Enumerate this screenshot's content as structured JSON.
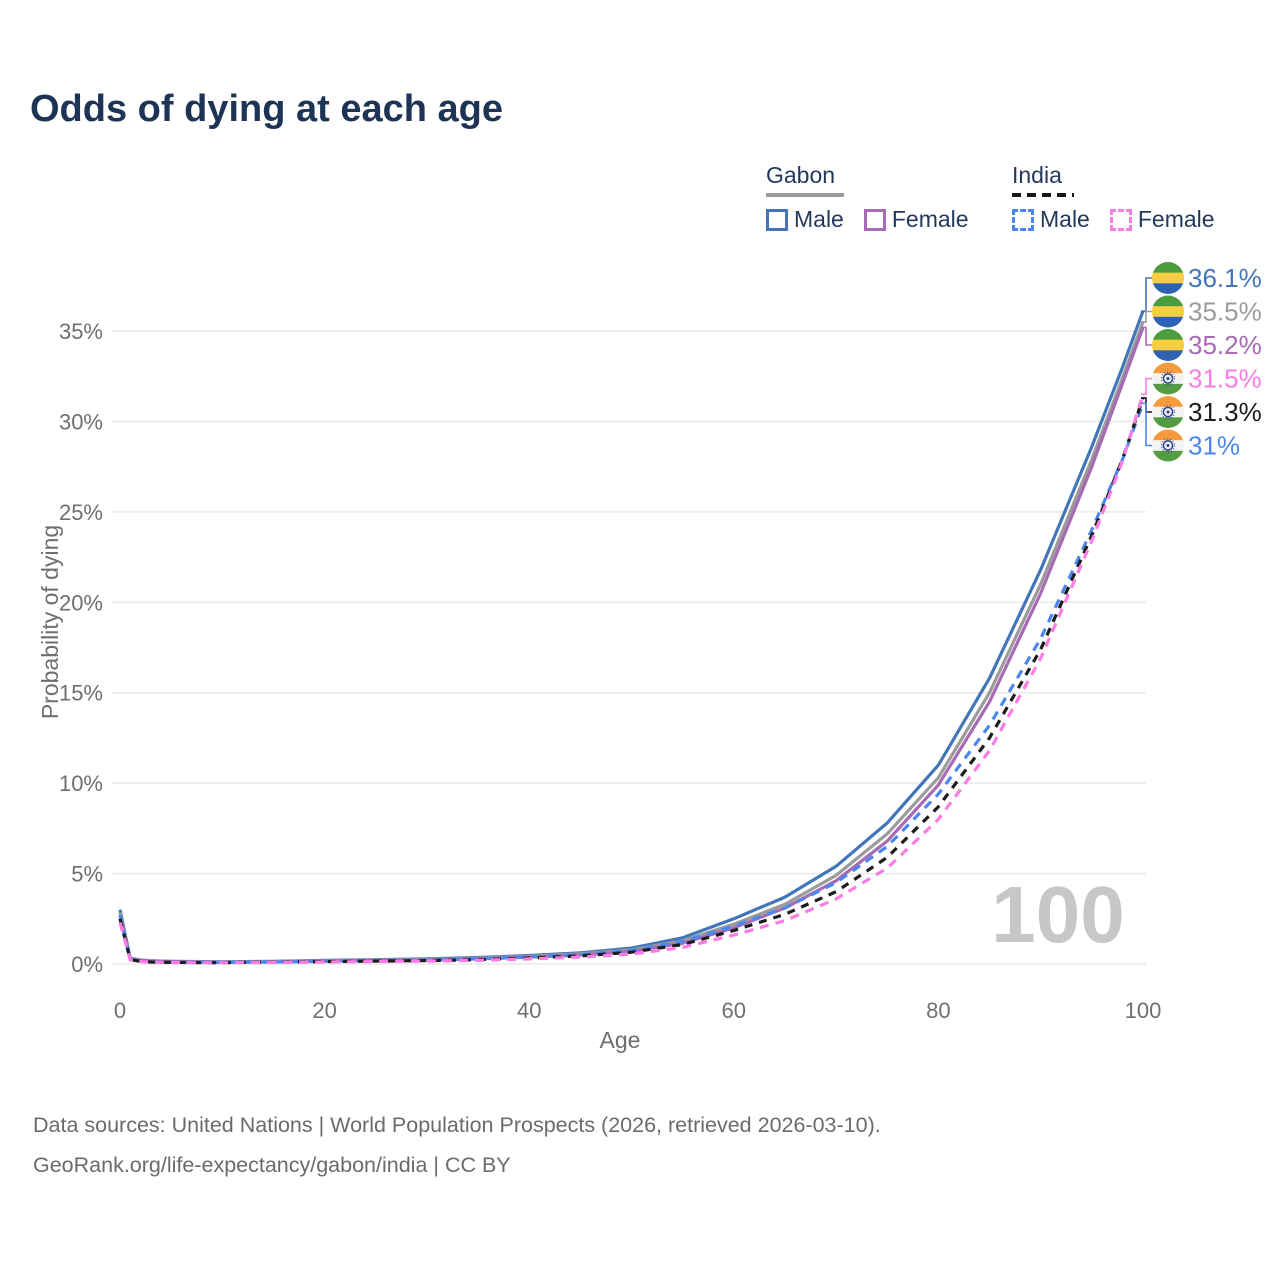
{
  "title": "Odds of dying at each age",
  "watermark": "100",
  "legend": {
    "gabon": {
      "title": "Gabon",
      "male": "Male",
      "female": "Female"
    },
    "india": {
      "title": "India",
      "male": "Male",
      "female": "Female"
    }
  },
  "footer": {
    "line1": "Data sources: United Nations | World Population Prospects (2026, retrieved 2026-03-10).",
    "line2": "GeoRank.org/life-expectancy/gabon/india | CC BY"
  },
  "colors": {
    "title_text": "#1d3456",
    "legend_text": "#22395c",
    "axis_text": "#6f6f6f",
    "grid_line": "#e9e9e9",
    "watermark": "#c7c7c7",
    "gabon_underline": "#9b9b9b",
    "india_underline": "#161616",
    "flag_gabon": [
      "#4c9c3f",
      "#f6ce41",
      "#2d62b2"
    ],
    "flag_india": [
      "#f59b3c",
      "#f3f3f3",
      "#549c44"
    ],
    "india_chakra": "#27408f"
  },
  "chart_data": {
    "type": "line",
    "title": "Odds of dying at each age",
    "xlabel": "Age",
    "ylabel": "Probability of dying",
    "xlim": [
      0,
      100
    ],
    "ylim": [
      0,
      37.5
    ],
    "grid": "horizontal",
    "legend_position": "top-right",
    "x_ticks": [
      0,
      20,
      40,
      60,
      80,
      100
    ],
    "y_ticks": [
      "0%",
      "5%",
      "10%",
      "15%",
      "20%",
      "25%",
      "30%",
      "35%"
    ],
    "y_tick_values": [
      0,
      5,
      10,
      15,
      20,
      25,
      30,
      35
    ],
    "ages": [
      0,
      1,
      2,
      3,
      5,
      8,
      10,
      15,
      20,
      25,
      30,
      35,
      40,
      45,
      50,
      55,
      60,
      65,
      70,
      75,
      80,
      85,
      90,
      95,
      98,
      100
    ],
    "series": [
      {
        "name": "Gabon Male",
        "country": "Gabon",
        "sex": "Male",
        "flag": "gabon",
        "color": "#4276b9",
        "dash": "",
        "end_label": "36.1%",
        "end_value": 36.1,
        "values": [
          3.0,
          0.32,
          0.22,
          0.18,
          0.15,
          0.13,
          0.12,
          0.15,
          0.2,
          0.24,
          0.29,
          0.36,
          0.47,
          0.62,
          0.88,
          1.45,
          2.5,
          3.7,
          5.4,
          7.8,
          11.0,
          15.8,
          21.8,
          28.6,
          33.0,
          36.1
        ]
      },
      {
        "name": "Gabon Both sexes",
        "country": "Gabon",
        "sex": "Both",
        "flag": "gabon",
        "color": "#9b9b9b",
        "dash": "",
        "end_label": "35.5%",
        "end_value": 35.5,
        "values": [
          2.85,
          0.3,
          0.21,
          0.17,
          0.14,
          0.12,
          0.11,
          0.13,
          0.18,
          0.21,
          0.26,
          0.32,
          0.42,
          0.56,
          0.78,
          1.28,
          2.2,
          3.3,
          4.9,
          7.2,
          10.3,
          15.0,
          21.0,
          27.9,
          32.4,
          35.5
        ]
      },
      {
        "name": "Gabon Female",
        "country": "Gabon",
        "sex": "Female",
        "flag": "gabon",
        "color": "#a76ab4",
        "dash": "",
        "end_label": "35.2%",
        "end_value": 35.2,
        "values": [
          2.7,
          0.28,
          0.2,
          0.16,
          0.13,
          0.11,
          0.1,
          0.12,
          0.16,
          0.19,
          0.23,
          0.29,
          0.38,
          0.5,
          0.7,
          1.15,
          2.0,
          3.1,
          4.6,
          6.8,
          9.9,
          14.5,
          20.5,
          27.5,
          32.1,
          35.2
        ]
      },
      {
        "name": "India Male",
        "country": "India",
        "sex": "Male",
        "flag": "india",
        "color": "#4c87f0",
        "dash": "9 7",
        "end_label": "31%",
        "end_value": 31.0,
        "values": [
          2.7,
          0.26,
          0.16,
          0.12,
          0.1,
          0.09,
          0.09,
          0.11,
          0.15,
          0.18,
          0.22,
          0.28,
          0.38,
          0.52,
          0.75,
          1.25,
          2.1,
          3.1,
          4.5,
          6.5,
          9.4,
          13.2,
          18.0,
          24.0,
          27.9,
          31.0
        ]
      },
      {
        "name": "India Both sexes",
        "country": "India",
        "sex": "Both",
        "flag": "india",
        "color": "#1c1c1c",
        "dash": "8 7",
        "end_label": "31.3%",
        "end_value": 31.3,
        "values": [
          2.5,
          0.24,
          0.15,
          0.11,
          0.09,
          0.08,
          0.08,
          0.1,
          0.13,
          0.16,
          0.19,
          0.24,
          0.33,
          0.45,
          0.65,
          1.08,
          1.85,
          2.75,
          4.0,
          5.9,
          8.7,
          12.5,
          17.4,
          23.7,
          27.9,
          31.3
        ]
      },
      {
        "name": "India Female",
        "country": "India",
        "sex": "Female",
        "flag": "india",
        "color": "#fb7ce4",
        "dash": "9 7",
        "end_label": "31.5%",
        "end_value": 31.5,
        "values": [
          2.3,
          0.22,
          0.14,
          0.1,
          0.08,
          0.07,
          0.07,
          0.09,
          0.11,
          0.13,
          0.16,
          0.2,
          0.28,
          0.38,
          0.55,
          0.92,
          1.6,
          2.4,
          3.6,
          5.3,
          8.0,
          11.8,
          16.9,
          23.4,
          27.8,
          31.5
        ]
      }
    ]
  }
}
